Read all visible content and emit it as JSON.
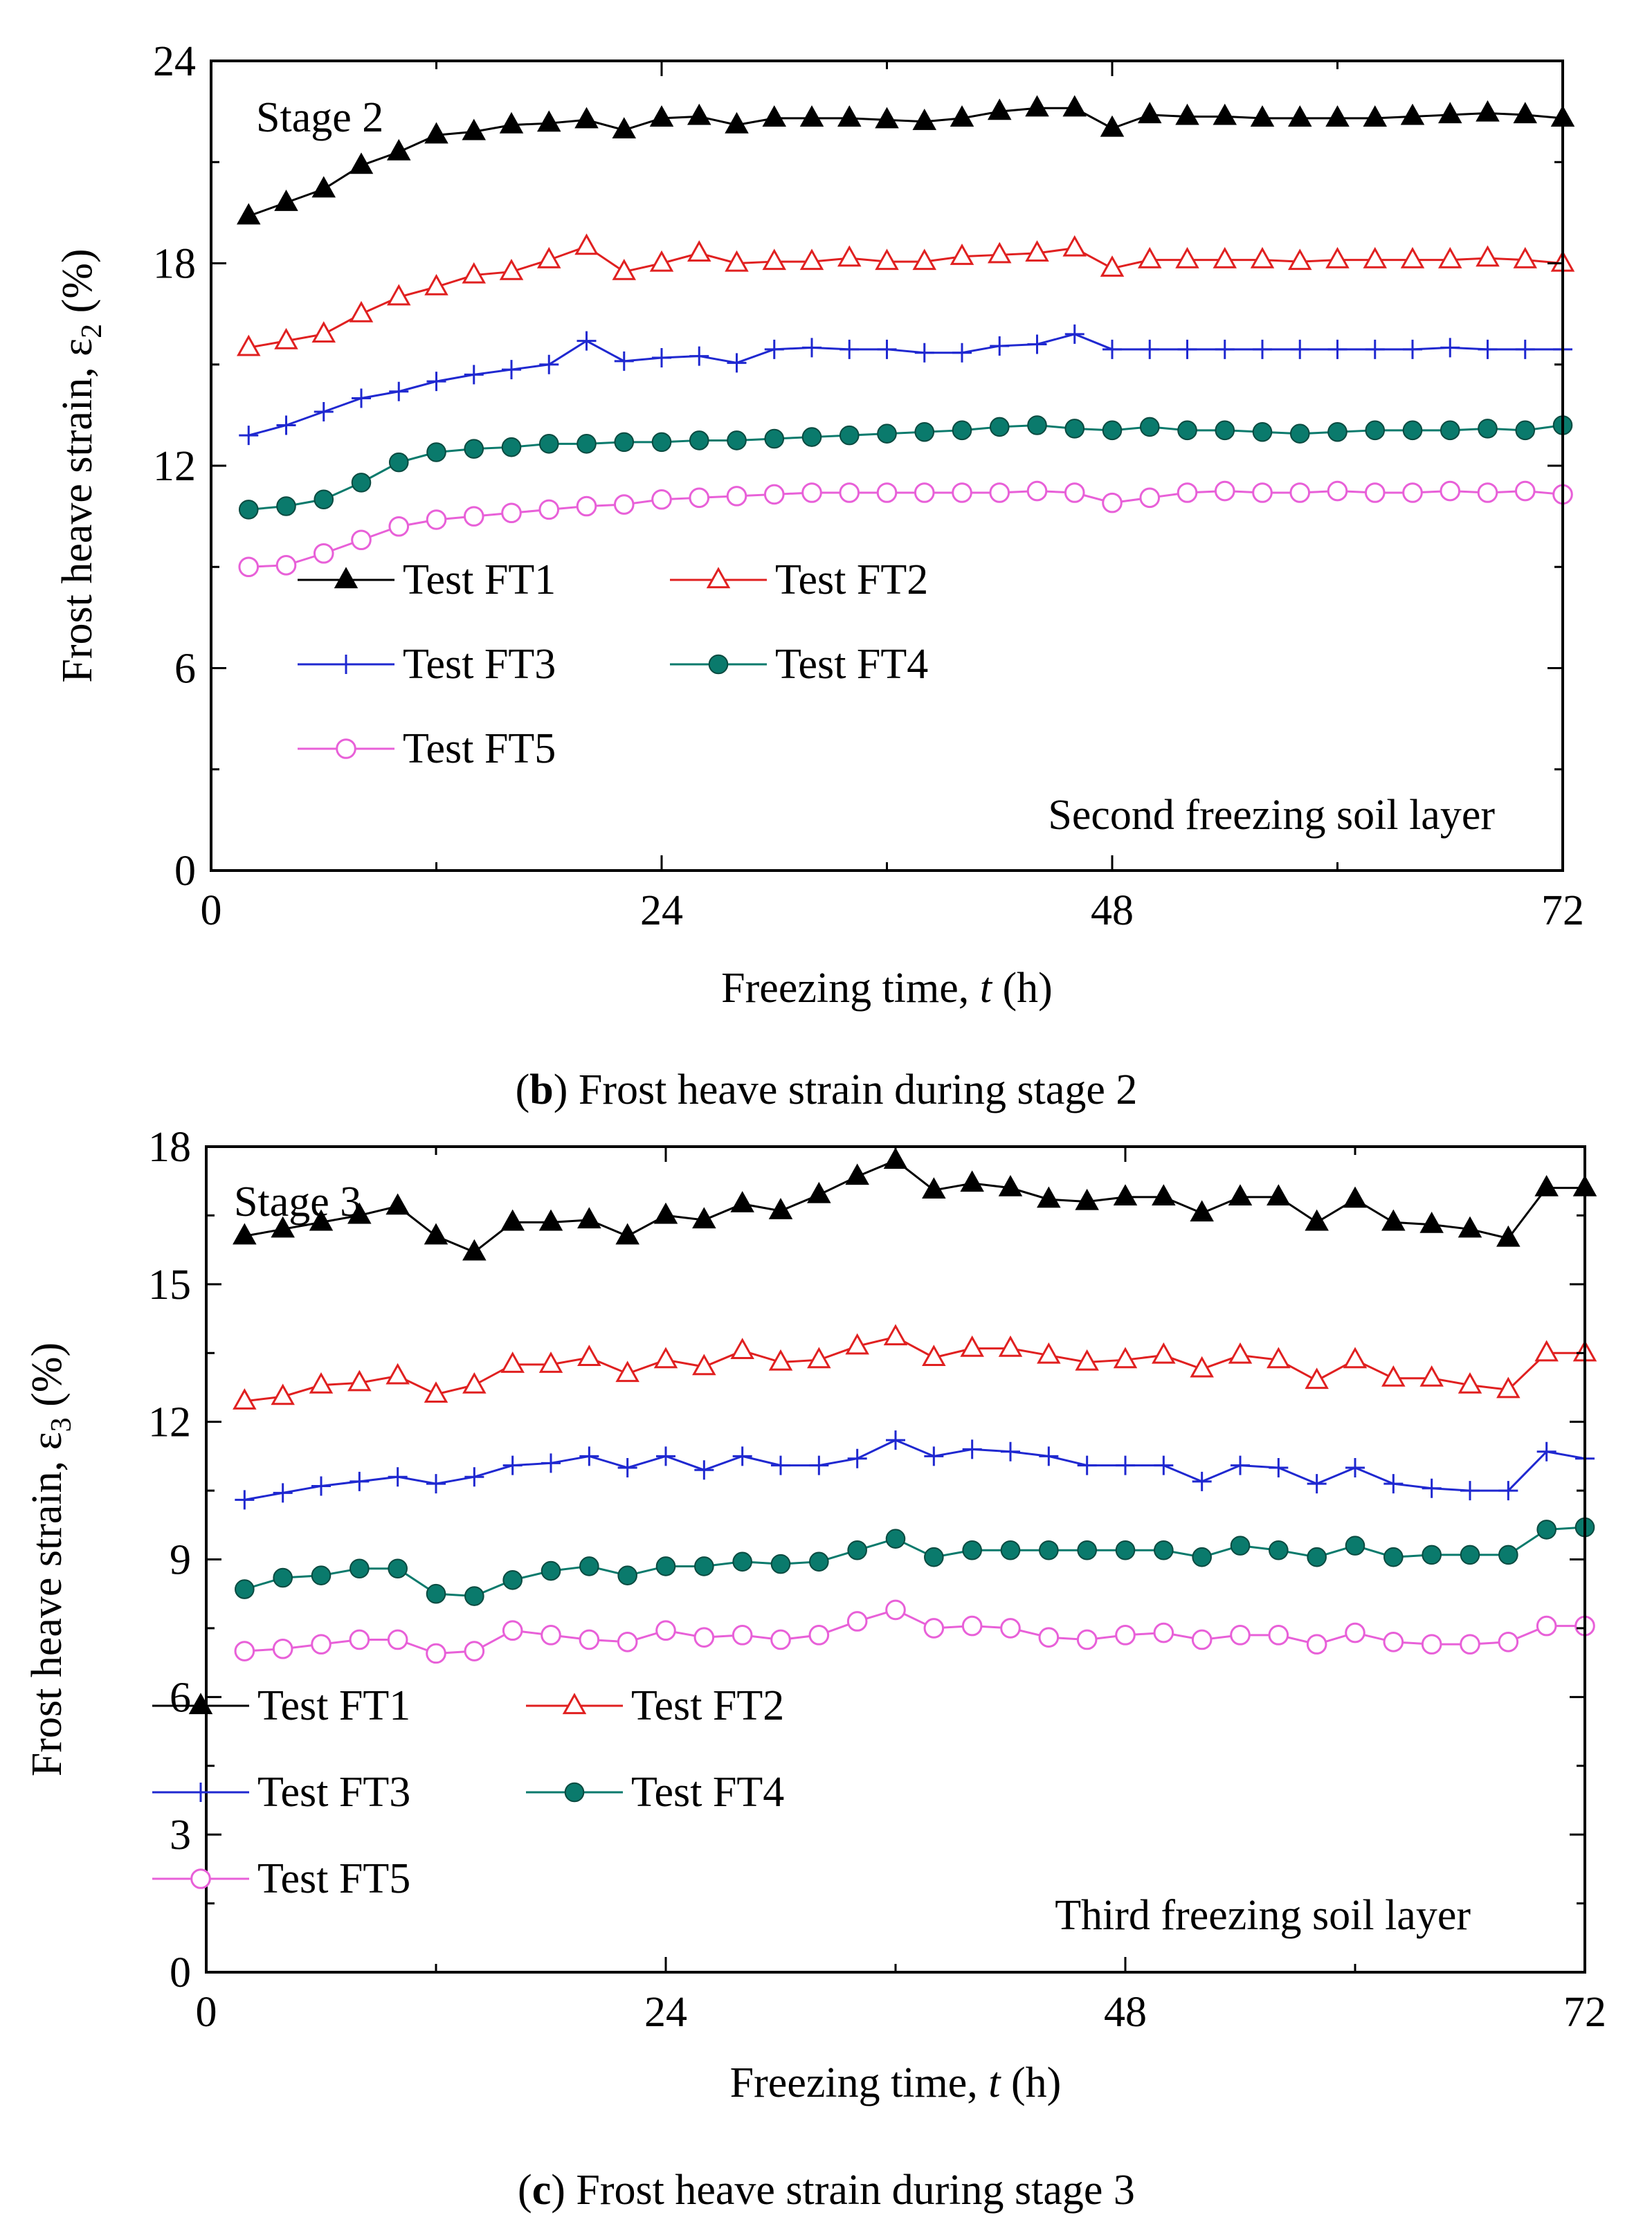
{
  "chart_data": [
    {
      "type": "line",
      "id": "b",
      "stage_label": "Stage 2",
      "annotation": "Second freezing soil layer",
      "caption_letter": "b",
      "caption_text": ") Frost heave strain during stage 2",
      "xlabel": "Freezing time, ",
      "xlabel_var": "t",
      "xlabel_unit": " (h)",
      "ylabel": "Frost heave strain, ε",
      "ylabel_sub": "2",
      "ylabel_unit": " (%)",
      "xlim": [
        0,
        72
      ],
      "ylim": [
        0,
        24
      ],
      "xticks": [
        0,
        24,
        48,
        72
      ],
      "yticks": [
        0,
        6,
        12,
        18,
        24
      ],
      "x": [
        2,
        4,
        6,
        8,
        10,
        12,
        14,
        16,
        18,
        20,
        22,
        24,
        26,
        28,
        30,
        32,
        34,
        36,
        38,
        40,
        42,
        44,
        46,
        48,
        50,
        52,
        54,
        56,
        58,
        60,
        62,
        64,
        66,
        68,
        70,
        72
      ],
      "series": [
        {
          "name": "Test FT1",
          "color": "#000000",
          "marker": "triangle-filled",
          "values": [
            19.4,
            19.8,
            20.2,
            20.9,
            21.3,
            21.8,
            21.9,
            22.1,
            22.15,
            22.25,
            21.95,
            22.3,
            22.35,
            22.1,
            22.3,
            22.3,
            22.3,
            22.25,
            22.2,
            22.3,
            22.5,
            22.6,
            22.6,
            22.0,
            22.4,
            22.35,
            22.35,
            22.3,
            22.3,
            22.3,
            22.3,
            22.35,
            22.4,
            22.45,
            22.4,
            22.3
          ]
        },
        {
          "name": "Test FT2",
          "color": "#e02020",
          "marker": "triangle-open",
          "values": [
            15.5,
            15.7,
            15.9,
            16.5,
            17.0,
            17.3,
            17.65,
            17.75,
            18.1,
            18.5,
            17.75,
            18.0,
            18.3,
            18.0,
            18.05,
            18.05,
            18.15,
            18.05,
            18.05,
            18.2,
            18.25,
            18.3,
            18.45,
            17.85,
            18.1,
            18.1,
            18.1,
            18.1,
            18.05,
            18.1,
            18.1,
            18.1,
            18.1,
            18.15,
            18.1,
            18.0
          ]
        },
        {
          "name": "Test FT3",
          "color": "#1f28d0",
          "marker": "plus",
          "values": [
            12.9,
            13.2,
            13.6,
            14.0,
            14.2,
            14.5,
            14.7,
            14.85,
            15.0,
            15.7,
            15.1,
            15.2,
            15.25,
            15.05,
            15.45,
            15.5,
            15.45,
            15.45,
            15.35,
            15.35,
            15.55,
            15.6,
            15.9,
            15.45,
            15.45,
            15.45,
            15.45,
            15.45,
            15.45,
            15.45,
            15.45,
            15.45,
            15.5,
            15.45,
            15.45,
            15.45
          ]
        },
        {
          "name": "Test FT4",
          "color": "#0a7a6c",
          "marker": "circle-filled",
          "values": [
            10.7,
            10.8,
            11.0,
            11.5,
            12.1,
            12.4,
            12.5,
            12.55,
            12.65,
            12.65,
            12.7,
            12.7,
            12.75,
            12.75,
            12.8,
            12.85,
            12.9,
            12.95,
            13.0,
            13.05,
            13.15,
            13.2,
            13.1,
            13.05,
            13.15,
            13.05,
            13.05,
            13.0,
            12.95,
            13.0,
            13.05,
            13.05,
            13.05,
            13.1,
            13.05,
            13.2
          ]
        },
        {
          "name": "Test FT5",
          "color": "#e860d8",
          "marker": "circle-open",
          "values": [
            9.0,
            9.05,
            9.4,
            9.8,
            10.2,
            10.4,
            10.5,
            10.6,
            10.7,
            10.8,
            10.85,
            11.0,
            11.05,
            11.1,
            11.15,
            11.2,
            11.2,
            11.2,
            11.2,
            11.2,
            11.2,
            11.25,
            11.2,
            10.9,
            11.05,
            11.2,
            11.25,
            11.2,
            11.2,
            11.25,
            11.2,
            11.2,
            11.25,
            11.2,
            11.25,
            11.15
          ]
        }
      ]
    },
    {
      "type": "line",
      "id": "c",
      "stage_label": "Stage 3",
      "annotation": "Third freezing soil layer",
      "caption_letter": "c",
      "caption_text": ") Frost heave strain during stage 3",
      "xlabel": "Freezing time, ",
      "xlabel_var": "t",
      "xlabel_unit": " (h)",
      "ylabel": "Frost heave strain, ε",
      "ylabel_sub": "3",
      "ylabel_unit": " (%)",
      "xlim": [
        0,
        72
      ],
      "ylim": [
        0,
        18
      ],
      "xticks": [
        0,
        24,
        48,
        72
      ],
      "yticks": [
        0,
        3,
        6,
        9,
        12,
        15,
        18
      ],
      "x": [
        2,
        4,
        6,
        8,
        10,
        12,
        14,
        16,
        18,
        20,
        22,
        24,
        26,
        28,
        30,
        32,
        34,
        36,
        38,
        40,
        42,
        44,
        46,
        48,
        50,
        52,
        54,
        56,
        58,
        60,
        62,
        64,
        66,
        68,
        70,
        72
      ],
      "series": [
        {
          "name": "Test FT1",
          "color": "#000000",
          "marker": "triangle-filled",
          "values": [
            16.05,
            16.2,
            16.35,
            16.5,
            16.7,
            16.05,
            15.7,
            16.35,
            16.35,
            16.4,
            16.05,
            16.5,
            16.4,
            16.75,
            16.6,
            16.95,
            17.35,
            17.7,
            17.05,
            17.2,
            17.1,
            16.85,
            16.8,
            16.9,
            16.9,
            16.55,
            16.9,
            16.9,
            16.35,
            16.85,
            16.35,
            16.3,
            16.2,
            16.0,
            17.1,
            17.1
          ]
        },
        {
          "name": "Test FT2",
          "color": "#e02020",
          "marker": "triangle-open",
          "values": [
            12.45,
            12.55,
            12.8,
            12.85,
            13.0,
            12.6,
            12.8,
            13.25,
            13.25,
            13.4,
            13.05,
            13.35,
            13.2,
            13.55,
            13.3,
            13.35,
            13.65,
            13.85,
            13.4,
            13.6,
            13.6,
            13.45,
            13.3,
            13.35,
            13.45,
            13.15,
            13.45,
            13.35,
            12.9,
            13.35,
            12.95,
            12.95,
            12.8,
            12.7,
            13.5,
            13.5
          ]
        },
        {
          "name": "Test FT3",
          "color": "#1f28d0",
          "marker": "plus",
          "values": [
            10.3,
            10.45,
            10.6,
            10.7,
            10.8,
            10.65,
            10.8,
            11.05,
            11.1,
            11.25,
            11.0,
            11.25,
            10.95,
            11.25,
            11.05,
            11.05,
            11.2,
            11.6,
            11.25,
            11.4,
            11.35,
            11.25,
            11.05,
            11.05,
            11.05,
            10.7,
            11.05,
            11.0,
            10.65,
            11.0,
            10.65,
            10.55,
            10.5,
            10.5,
            11.35,
            11.2
          ]
        },
        {
          "name": "Test FT4",
          "color": "#0a7a6c",
          "marker": "circle-filled",
          "values": [
            8.35,
            8.6,
            8.65,
            8.8,
            8.8,
            8.25,
            8.2,
            8.55,
            8.75,
            8.85,
            8.65,
            8.85,
            8.85,
            8.95,
            8.9,
            8.95,
            9.2,
            9.45,
            9.05,
            9.2,
            9.2,
            9.2,
            9.2,
            9.2,
            9.2,
            9.05,
            9.3,
            9.2,
            9.05,
            9.3,
            9.05,
            9.1,
            9.1,
            9.1,
            9.65,
            9.7
          ]
        },
        {
          "name": "Test FT5",
          "color": "#e860d8",
          "marker": "circle-open",
          "values": [
            7.0,
            7.05,
            7.15,
            7.25,
            7.25,
            6.95,
            7.0,
            7.45,
            7.35,
            7.25,
            7.2,
            7.45,
            7.3,
            7.35,
            7.25,
            7.35,
            7.65,
            7.9,
            7.5,
            7.55,
            7.5,
            7.3,
            7.25,
            7.35,
            7.4,
            7.25,
            7.35,
            7.35,
            7.15,
            7.4,
            7.2,
            7.15,
            7.15,
            7.2,
            7.55,
            7.55
          ]
        }
      ]
    }
  ]
}
